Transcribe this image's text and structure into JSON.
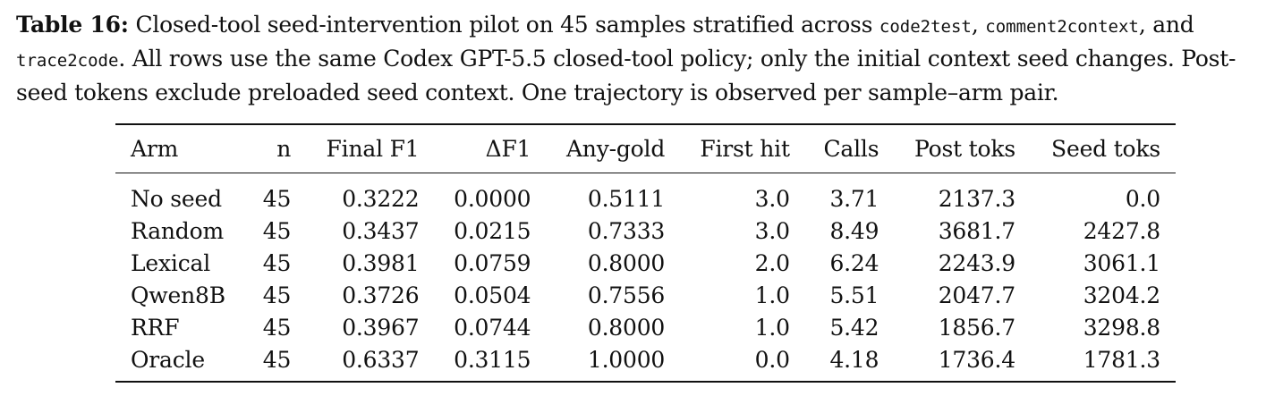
{
  "caption": {
    "label": "Table 16:",
    "part1": " Closed-tool seed-intervention pilot on 45 samples stratified across ",
    "code1": "code2test",
    "sep1": ", ",
    "code2": "comment2context",
    "sep2": ", and ",
    "code3": "trace2code",
    "part2": ". All rows use the same Codex GPT-5.5 closed-tool policy; only the initial context seed changes. Post-seed tokens exclude preloaded seed context. One trajectory is observed per sample–arm pair."
  },
  "table": {
    "headers": [
      "Arm",
      "n",
      "Final F1",
      "ΔF1",
      "Any-gold",
      "First hit",
      "Calls",
      "Post toks",
      "Seed toks"
    ],
    "rows": [
      [
        "No seed",
        "45",
        "0.3222",
        "0.0000",
        "0.5111",
        "3.0",
        "3.71",
        "2137.3",
        "0.0"
      ],
      [
        "Random",
        "45",
        "0.3437",
        "0.0215",
        "0.7333",
        "3.0",
        "8.49",
        "3681.7",
        "2427.8"
      ],
      [
        "Lexical",
        "45",
        "0.3981",
        "0.0759",
        "0.8000",
        "2.0",
        "6.24",
        "2243.9",
        "3061.1"
      ],
      [
        "Qwen8B",
        "45",
        "0.3726",
        "0.0504",
        "0.7556",
        "1.0",
        "5.51",
        "2047.7",
        "3204.2"
      ],
      [
        "RRF",
        "45",
        "0.3967",
        "0.0744",
        "0.8000",
        "1.0",
        "5.42",
        "1856.7",
        "3298.8"
      ],
      [
        "Oracle",
        "45",
        "0.6337",
        "0.3115",
        "1.0000",
        "0.0",
        "4.18",
        "1736.4",
        "1781.3"
      ]
    ]
  }
}
